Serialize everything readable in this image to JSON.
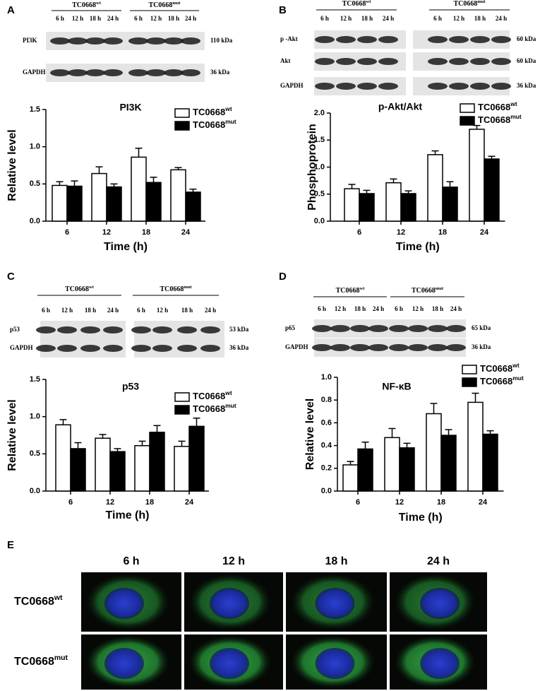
{
  "chart_data": [
    {
      "type": "bar",
      "title": "PI3K",
      "ylabel": "Relative level",
      "xlabel": "Time (h)",
      "categories": [
        "6",
        "12",
        "18",
        "24"
      ],
      "series": [
        {
          "name": "TC0668",
          "superscript": "wt",
          "color": "#ffffff",
          "values": [
            0.48,
            0.64,
            0.86,
            0.69
          ],
          "errors": [
            0.05,
            0.09,
            0.12,
            0.03
          ]
        },
        {
          "name": "TC0668",
          "superscript": "mut",
          "color": "#000000",
          "values": [
            0.47,
            0.46,
            0.52,
            0.39
          ],
          "errors": [
            0.07,
            0.04,
            0.07,
            0.04
          ]
        }
      ],
      "ylim": [
        0,
        1.5
      ],
      "yticks": [
        {
          "value": 0,
          "label": "0.0"
        },
        0.5,
        {
          "value": 1,
          "label": "1.0"
        },
        1.5
      ]
    },
    {
      "type": "bar",
      "title": "p-Akt/Akt",
      "ylabel": "Phosphoprotein",
      "xlabel": "Time (h)",
      "categories": [
        "6",
        "12",
        "18",
        "24"
      ],
      "series": [
        {
          "name": "TC0668",
          "superscript": "wt",
          "color": "#ffffff",
          "values": [
            0.6,
            0.71,
            1.23,
            1.7
          ],
          "errors": [
            0.08,
            0.07,
            0.07,
            0.07
          ]
        },
        {
          "name": "TC0668",
          "superscript": "mut",
          "color": "#000000",
          "values": [
            0.51,
            0.51,
            0.63,
            1.15
          ],
          "errors": [
            0.06,
            0.05,
            0.1,
            0.05
          ]
        }
      ],
      "ylim": [
        0,
        2
      ],
      "yticks": [
        {
          "value": 0,
          "label": "0.0"
        },
        0.5,
        {
          "value": 1,
          "label": "1.0"
        },
        1.5,
        {
          "value": 2,
          "label": "2.0"
        }
      ]
    },
    {
      "type": "bar",
      "title": "p53",
      "ylabel": "Relative level",
      "xlabel": "Time (h)",
      "categories": [
        "6",
        "12",
        "18",
        "24"
      ],
      "series": [
        {
          "name": "TC0668",
          "superscript": "wt",
          "color": "#ffffff",
          "values": [
            0.89,
            0.71,
            0.61,
            0.6
          ],
          "errors": [
            0.07,
            0.05,
            0.06,
            0.07
          ]
        },
        {
          "name": "TC0668",
          "superscript": "mut",
          "color": "#000000",
          "values": [
            0.57,
            0.53,
            0.79,
            0.87
          ],
          "errors": [
            0.08,
            0.04,
            0.09,
            0.11
          ]
        }
      ],
      "ylim": [
        0,
        1.5
      ],
      "yticks": [
        {
          "value": 0,
          "label": "0.0"
        },
        0.5,
        {
          "value": 1,
          "label": "1.0"
        },
        1.5
      ]
    },
    {
      "type": "bar",
      "title": "NF-κB",
      "ylabel": "Relative level",
      "xlabel": "Time (h)",
      "categories": [
        "6",
        "12",
        "18",
        "24"
      ],
      "series": [
        {
          "name": "TC0668",
          "superscript": "wt",
          "color": "#ffffff",
          "values": [
            0.23,
            0.47,
            0.68,
            0.78
          ],
          "errors": [
            0.03,
            0.08,
            0.09,
            0.08
          ]
        },
        {
          "name": "TC0668",
          "superscript": "mut",
          "color": "#000000",
          "values": [
            0.37,
            0.38,
            0.49,
            0.5
          ],
          "errors": [
            0.06,
            0.04,
            0.05,
            0.03
          ]
        }
      ],
      "ylim": [
        0,
        1
      ],
      "yticks": [
        {
          "value": 0,
          "label": "0.0"
        },
        0.2,
        0.4,
        0.6,
        0.8,
        {
          "value": 1,
          "label": "1.0"
        }
      ]
    }
  ],
  "blots": [
    {
      "panel": "A",
      "groups": [
        {
          "name": "TC0668",
          "superscript": "wt"
        },
        {
          "name": "TC0668",
          "superscript": "mut"
        }
      ],
      "times": [
        "6 h",
        "12 h",
        "18 h",
        "24 h"
      ],
      "rows": [
        {
          "label": "PI3K",
          "size": "110 kDa"
        },
        {
          "label": "GAPDH",
          "size": "36 kDa"
        }
      ]
    },
    {
      "panel": "B",
      "groups": [
        {
          "name": "TC0668",
          "superscript": "wt"
        },
        {
          "name": "TC0668",
          "superscript": "mut"
        }
      ],
      "times": [
        "6 h",
        "12 h",
        "18 h",
        "24 h"
      ],
      "rows": [
        {
          "label": "p -Akt",
          "size": "60 kDa"
        },
        {
          "label": "Akt",
          "size": "60 kDa"
        },
        {
          "label": "GAPDH",
          "size": "36 kDa"
        }
      ]
    },
    {
      "panel": "C",
      "groups": [
        {
          "name": "TC0668",
          "superscript": "wt"
        },
        {
          "name": "TC0668",
          "superscript": "mut"
        }
      ],
      "times": [
        "6 h",
        "12 h",
        "18 h",
        "24 h"
      ],
      "rows": [
        {
          "label": "p53",
          "size": "53 kDa"
        },
        {
          "label": "GAPDH",
          "size": "36 kDa"
        }
      ]
    },
    {
      "panel": "D",
      "groups": [
        {
          "name": "TC0668",
          "superscript": "wt"
        },
        {
          "name": "TC0668",
          "superscript": "mut"
        }
      ],
      "times": [
        "6 h",
        "12 h",
        "18 h",
        "24 h"
      ],
      "rows": [
        {
          "label": "p65",
          "size": "65 kDa"
        },
        {
          "label": "GAPDH",
          "size": "36 kDa"
        }
      ]
    }
  ],
  "microscopy": {
    "panel": "E",
    "columns": [
      "6 h",
      "12 h",
      "18 h",
      "24 h"
    ],
    "rows": [
      {
        "name": "TC0668",
        "superscript": "wt"
      },
      {
        "name": "TC0668",
        "superscript": "mut"
      }
    ]
  }
}
